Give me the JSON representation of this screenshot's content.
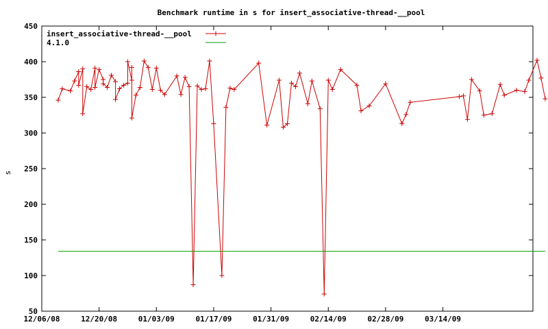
{
  "chart_data": {
    "type": "line",
    "title": "Benchmark runtime in s for insert_associative-thread-__pool",
    "xlabel": "",
    "ylabel": "s",
    "x_start": "2008-12-06",
    "x_end": "2009-04-05",
    "ylim": [
      50,
      450
    ],
    "y_ticks": [
      50,
      100,
      150,
      200,
      250,
      300,
      350,
      400,
      450
    ],
    "x_ticks": [
      {
        "date": "2008-12-06",
        "label": "12/06/08"
      },
      {
        "date": "2008-12-20",
        "label": "12/20/08"
      },
      {
        "date": "2009-01-03",
        "label": "01/03/09"
      },
      {
        "date": "2009-01-17",
        "label": "01/17/09"
      },
      {
        "date": "2009-01-31",
        "label": "01/31/09"
      },
      {
        "date": "2009-02-14",
        "label": "02/14/09"
      },
      {
        "date": "2009-02-28",
        "label": "02/28/09"
      },
      {
        "date": "2009-03-14",
        "label": "03/14/09"
      }
    ],
    "grid": false,
    "legend_position": "top-left",
    "series": [
      {
        "name": "insert_associative-thread-__pool",
        "color": "#cc0000",
        "markers": true,
        "points": [
          [
            "2008-12-10",
            346
          ],
          [
            "2008-12-11",
            362
          ],
          [
            "2008-12-13",
            359
          ],
          [
            "2008-12-14",
            373
          ],
          [
            "2008-12-15",
            386
          ],
          [
            "2008-12-15",
            367
          ],
          [
            "2008-12-16",
            390
          ],
          [
            "2008-12-16",
            327
          ],
          [
            "2008-12-17",
            365
          ],
          [
            "2008-12-18",
            361
          ],
          [
            "2008-12-19",
            391
          ],
          [
            "2008-12-19",
            364
          ],
          [
            "2008-12-20",
            389
          ],
          [
            "2008-12-21",
            375
          ],
          [
            "2008-12-21",
            369
          ],
          [
            "2008-12-22",
            364
          ],
          [
            "2008-12-23",
            381
          ],
          [
            "2008-12-24",
            372
          ],
          [
            "2008-12-24",
            347
          ],
          [
            "2008-12-25",
            362
          ],
          [
            "2008-12-26",
            367
          ],
          [
            "2008-12-27",
            370
          ],
          [
            "2008-12-27",
            400
          ],
          [
            "2008-12-28",
            374
          ],
          [
            "2008-12-28",
            392
          ],
          [
            "2008-12-28",
            321
          ],
          [
            "2008-12-29",
            353
          ],
          [
            "2008-12-30",
            364
          ],
          [
            "2008-12-31",
            401
          ],
          [
            "2009-01-01",
            392
          ],
          [
            "2009-01-02",
            361
          ],
          [
            "2009-01-03",
            391
          ],
          [
            "2009-01-04",
            360
          ],
          [
            "2009-01-05",
            354
          ],
          [
            "2009-01-08",
            380
          ],
          [
            "2009-01-09",
            354
          ],
          [
            "2009-01-10",
            378
          ],
          [
            "2009-01-11",
            365
          ],
          [
            "2009-01-12",
            87
          ],
          [
            "2009-01-13",
            366
          ],
          [
            "2009-01-14",
            361
          ],
          [
            "2009-01-15",
            362
          ],
          [
            "2009-01-16",
            401
          ],
          [
            "2009-01-17",
            313
          ],
          [
            "2009-01-19",
            100
          ],
          [
            "2009-01-20",
            336
          ],
          [
            "2009-01-21",
            363
          ],
          [
            "2009-01-22",
            361
          ],
          [
            "2009-01-28",
            398
          ],
          [
            "2009-01-30",
            311
          ],
          [
            "2009-02-02",
            374
          ],
          [
            "2009-02-03",
            308
          ],
          [
            "2009-02-04",
            313
          ],
          [
            "2009-02-05",
            370
          ],
          [
            "2009-02-06",
            365
          ],
          [
            "2009-02-07",
            384
          ],
          [
            "2009-02-09",
            341
          ],
          [
            "2009-02-10",
            373
          ],
          [
            "2009-02-12",
            334
          ],
          [
            "2009-02-13",
            74
          ],
          [
            "2009-02-14",
            374
          ],
          [
            "2009-02-15",
            361
          ],
          [
            "2009-02-17",
            389
          ],
          [
            "2009-02-21",
            367
          ],
          [
            "2009-02-22",
            331
          ],
          [
            "2009-02-24",
            338
          ],
          [
            "2009-02-28",
            369
          ],
          [
            "2009-03-04",
            313
          ],
          [
            "2009-03-05",
            326
          ],
          [
            "2009-03-06",
            343
          ],
          [
            "2009-03-18",
            351
          ],
          [
            "2009-03-19",
            352
          ],
          [
            "2009-03-20",
            319
          ],
          [
            "2009-03-21",
            375
          ],
          [
            "2009-03-23",
            359
          ],
          [
            "2009-03-24",
            325
          ],
          [
            "2009-03-26",
            327
          ],
          [
            "2009-03-28",
            368
          ],
          [
            "2009-03-29",
            353
          ],
          [
            "2009-04-01",
            360
          ],
          [
            "2009-04-03",
            358
          ],
          [
            "2009-04-04",
            374
          ],
          [
            "2009-04-06",
            402
          ],
          [
            "2009-04-07",
            377
          ],
          [
            "2009-04-08",
            348
          ]
        ]
      },
      {
        "name": "4.1.0",
        "color": "#00a000",
        "markers": false,
        "points": [
          [
            "2008-12-10",
            134
          ],
          [
            "2009-04-08",
            134
          ]
        ]
      }
    ]
  }
}
